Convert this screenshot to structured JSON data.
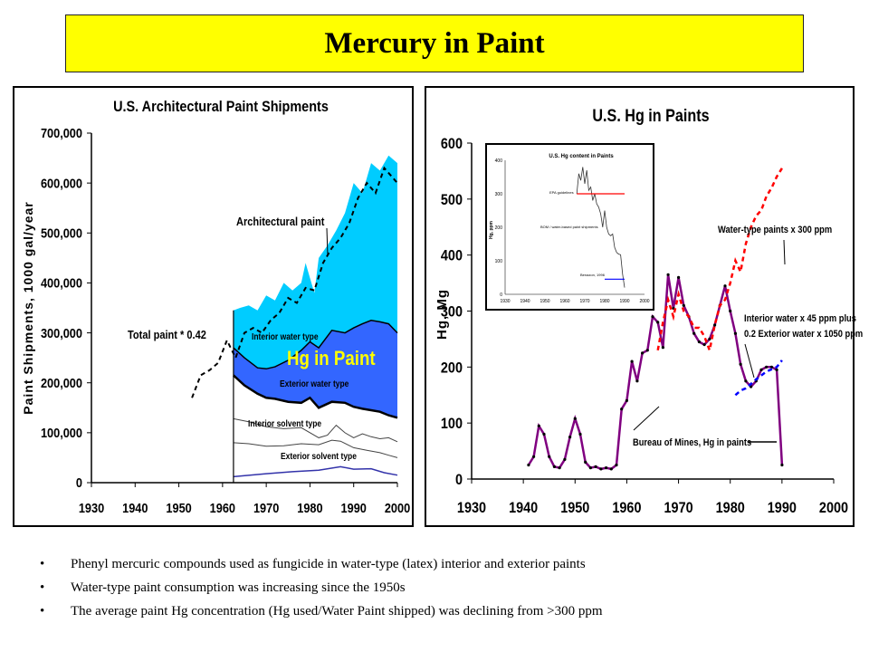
{
  "page": {
    "title": "Mercury in Paint",
    "bullet_glyph": "•",
    "bullets": [
      "Phenyl mercuric compounds used as fungicide in water-type (latex) interior and exterior paints",
      "Water-type paint consumption was increasing since the 1950s",
      "The average paint Hg concentration (Hg used/Water Paint shipped) was declining from >300 ppm"
    ]
  },
  "colors": {
    "title_bg": "#ffff00",
    "architectural_fill": "#00ccff",
    "water_fill": "#3366ff",
    "solvent_line": "#3333aa",
    "hg_text": "#ffff00",
    "bom_line": "#800080",
    "water_paint_dash": "#ff0000",
    "interior_dash": "#0000ff",
    "epa_line": "#ff0000"
  },
  "chart_data": [
    {
      "type": "area",
      "title": "U.S. Architectural Paint Shipments",
      "ylabel": "Paint Shipments, 1000 gal/year",
      "xlabel": "",
      "xlim": [
        1930,
        2000
      ],
      "ylim": [
        0,
        700000
      ],
      "x_ticks": [
        "1930",
        "1940",
        "1950",
        "1960",
        "1970",
        "1980",
        "1990",
        "2000"
      ],
      "y_ticks": [
        "0",
        "100,000",
        "200,000",
        "300,000",
        "400,000",
        "500,000",
        "600,000",
        "700,000"
      ],
      "grid": false,
      "legend": "none",
      "series": [
        {
          "name": "Architectural paint",
          "style": "filled area",
          "x": [
            1962.5,
            1964,
            1966,
            1968,
            1970,
            1972,
            1974,
            1976,
            1978,
            1979,
            1980,
            1981,
            1982,
            1984,
            1986,
            1988,
            1990,
            1992,
            1994,
            1996,
            1998,
            2000
          ],
          "values": [
            345000,
            350000,
            355000,
            345000,
            375000,
            365000,
            400000,
            385000,
            400000,
            440000,
            410000,
            380000,
            450000,
            475000,
            505000,
            540000,
            600000,
            580000,
            640000,
            625000,
            655000,
            640000
          ]
        },
        {
          "name": "Total paint * 0.42",
          "style": "dashed line",
          "x": [
            1953,
            1955,
            1957,
            1959,
            1961,
            1963,
            1965,
            1967,
            1969,
            1971,
            1973,
            1975,
            1977,
            1979,
            1981,
            1983,
            1985,
            1987,
            1989,
            1991,
            1993,
            1995,
            1997,
            1999,
            2000
          ],
          "values": [
            170000,
            215000,
            225000,
            240000,
            285000,
            250000,
            300000,
            310000,
            300000,
            325000,
            340000,
            370000,
            360000,
            390000,
            385000,
            440000,
            470000,
            490000,
            520000,
            570000,
            600000,
            580000,
            630000,
            610000,
            600000
          ]
        },
        {
          "name": "Interior water type",
          "style": "filled area",
          "x": [
            1962.5,
            1965,
            1968,
            1970,
            1972,
            1975,
            1978,
            1980,
            1982,
            1985,
            1988,
            1990,
            1992,
            1994,
            1996,
            1998,
            2000
          ],
          "values": [
            270000,
            250000,
            230000,
            228000,
            232000,
            245000,
            265000,
            282000,
            270000,
            305000,
            300000,
            310000,
            318000,
            325000,
            322000,
            318000,
            300000
          ]
        },
        {
          "name": "Exterior water type",
          "style": "filled area",
          "x": [
            1962.5,
            1965,
            1968,
            1970,
            1972,
            1975,
            1978,
            1980,
            1982,
            1985,
            1988,
            1990,
            1992,
            1994,
            1996,
            1998,
            2000
          ],
          "values": [
            215000,
            195000,
            178000,
            170000,
            168000,
            162000,
            160000,
            170000,
            150000,
            162000,
            160000,
            152000,
            148000,
            145000,
            142000,
            135000,
            130000
          ]
        },
        {
          "name": "Interior solvent type",
          "style": "line",
          "x": [
            1962.5,
            1966,
            1970,
            1974,
            1978,
            1982,
            1984,
            1986,
            1988,
            1990,
            1992,
            1994,
            1996,
            1998,
            2000
          ],
          "values": [
            128000,
            122000,
            112000,
            108000,
            110000,
            90000,
            95000,
            115000,
            100000,
            90000,
            98000,
            92000,
            88000,
            90000,
            82000
          ]
        },
        {
          "name": "Exterior solvent type",
          "style": "line",
          "x": [
            1962.5,
            1966,
            1970,
            1974,
            1978,
            1982,
            1985,
            1987,
            1990,
            1993,
            1996,
            1998,
            2000
          ],
          "values": [
            80000,
            78000,
            73000,
            74000,
            78000,
            76000,
            85000,
            83000,
            70000,
            65000,
            60000,
            55000,
            50000
          ]
        },
        {
          "name": "",
          "style": "line",
          "x": [
            1962.5,
            1970,
            1976,
            1982,
            1987,
            1990,
            1994,
            1997,
            2000
          ],
          "values": [
            12000,
            18000,
            22000,
            25000,
            32000,
            27000,
            28000,
            20000,
            15000
          ]
        }
      ],
      "annotations": [
        "Architectural paint",
        "Total paint * 0.42",
        "Interior water type",
        "Hg in Paint",
        "Exterior water type",
        "Interior solvent type",
        "Exterior solvent type"
      ]
    },
    {
      "type": "line",
      "title": "U.S. Hg in Paints",
      "ylabel": "Hg, Mg",
      "xlabel": "",
      "xlim": [
        1930,
        2000
      ],
      "ylim": [
        0,
        600
      ],
      "x_ticks": [
        "1930",
        "1940",
        "1950",
        "1960",
        "1970",
        "1980",
        "1990",
        "2000"
      ],
      "y_ticks": [
        "0",
        "100",
        "200",
        "300",
        "400",
        "500",
        "600"
      ],
      "grid": false,
      "legend": "none",
      "series": [
        {
          "name": "Bureau of Mines, Hg in paints",
          "style": "solid line with markers",
          "x": [
            1941,
            1942,
            1943,
            1944,
            1945,
            1946,
            1947,
            1948,
            1949,
            1950,
            1951,
            1952,
            1953,
            1954,
            1955,
            1956,
            1957,
            1958,
            1959,
            1960,
            1961,
            1962,
            1963,
            1964,
            1965,
            1966,
            1967,
            1968,
            1969,
            1970,
            1971,
            1972,
            1973,
            1974,
            1975,
            1976,
            1977,
            1978,
            1979,
            1980,
            1981,
            1982,
            1983,
            1984,
            1985,
            1986,
            1987,
            1988,
            1989,
            1990
          ],
          "values": [
            25,
            40,
            95,
            80,
            40,
            22,
            20,
            35,
            75,
            108,
            80,
            30,
            20,
            22,
            18,
            20,
            18,
            25,
            125,
            140,
            210,
            175,
            225,
            230,
            290,
            280,
            235,
            365,
            305,
            360,
            310,
            290,
            260,
            245,
            240,
            250,
            275,
            310,
            345,
            300,
            260,
            205,
            175,
            165,
            175,
            195,
            200,
            200,
            195,
            25
          ]
        },
        {
          "name": "Water-type paints x 300 ppm",
          "style": "red dashed line",
          "x": [
            1966,
            1967,
            1968,
            1969,
            1970,
            1971,
            1972,
            1973,
            1974,
            1975,
            1976,
            1977,
            1978,
            1979,
            1980,
            1981,
            1982,
            1983,
            1984,
            1985,
            1986,
            1987,
            1988,
            1989,
            1990
          ],
          "values": [
            230,
            280,
            320,
            290,
            330,
            300,
            290,
            270,
            270,
            255,
            230,
            275,
            310,
            320,
            350,
            390,
            370,
            420,
            450,
            470,
            480,
            505,
            520,
            540,
            555
          ]
        },
        {
          "name": "Interior water x 45 ppm plus 0.2 Exterior water x 1050 ppm",
          "style": "blue dashed line",
          "x": [
            1981,
            1982,
            1983,
            1984,
            1985,
            1986,
            1987,
            1988,
            1989,
            1990
          ],
          "values": [
            150,
            158,
            162,
            170,
            178,
            185,
            192,
            196,
            200,
            212
          ]
        }
      ],
      "annotations": [
        "Water-type paints x 300 ppm",
        "Interior water x 45 ppm plus",
        "0.2 Exterior water x 1050 ppm",
        "Bureau of Mines, Hg in paints"
      ]
    },
    {
      "type": "line",
      "title": "U.S. Hg content in Paints",
      "ylabel": "Hg, ppm",
      "xlabel": "",
      "xlim": [
        1930,
        2000
      ],
      "ylim": [
        0,
        400
      ],
      "x_ticks": [
        "1930",
        "1940",
        "1950",
        "1960",
        "1970",
        "1980",
        "1990",
        "2000"
      ],
      "y_ticks": [
        "0",
        "100",
        "200",
        "300",
        "400"
      ],
      "grid": false,
      "legend": "none",
      "series": [
        {
          "name": "BOM / water-based paint shipments",
          "style": "gray line",
          "x": [
            1966,
            1967,
            1968,
            1969,
            1970,
            1971,
            1972,
            1973,
            1974,
            1975,
            1976,
            1977,
            1978,
            1979,
            1980,
            1981,
            1982,
            1983,
            1984,
            1985,
            1986,
            1987,
            1988,
            1989,
            1990
          ],
          "values": [
            300,
            360,
            340,
            380,
            330,
            370,
            310,
            320,
            280,
            300,
            270,
            260,
            240,
            200,
            250,
            200,
            180,
            175,
            180,
            140,
            125,
            120,
            118,
            60,
            20
          ]
        },
        {
          "name": "EPA guidelines",
          "style": "red line",
          "x": [
            1966,
            1990
          ],
          "values": [
            300,
            300
          ]
        },
        {
          "name": "Benazon, 1996",
          "style": "blue line",
          "x": [
            1980,
            1990
          ],
          "values": [
            45,
            45
          ]
        }
      ],
      "annotations": [
        "EPA guidelines",
        "BOM / water-based paint shipments",
        "Benazon, 1996"
      ]
    }
  ]
}
